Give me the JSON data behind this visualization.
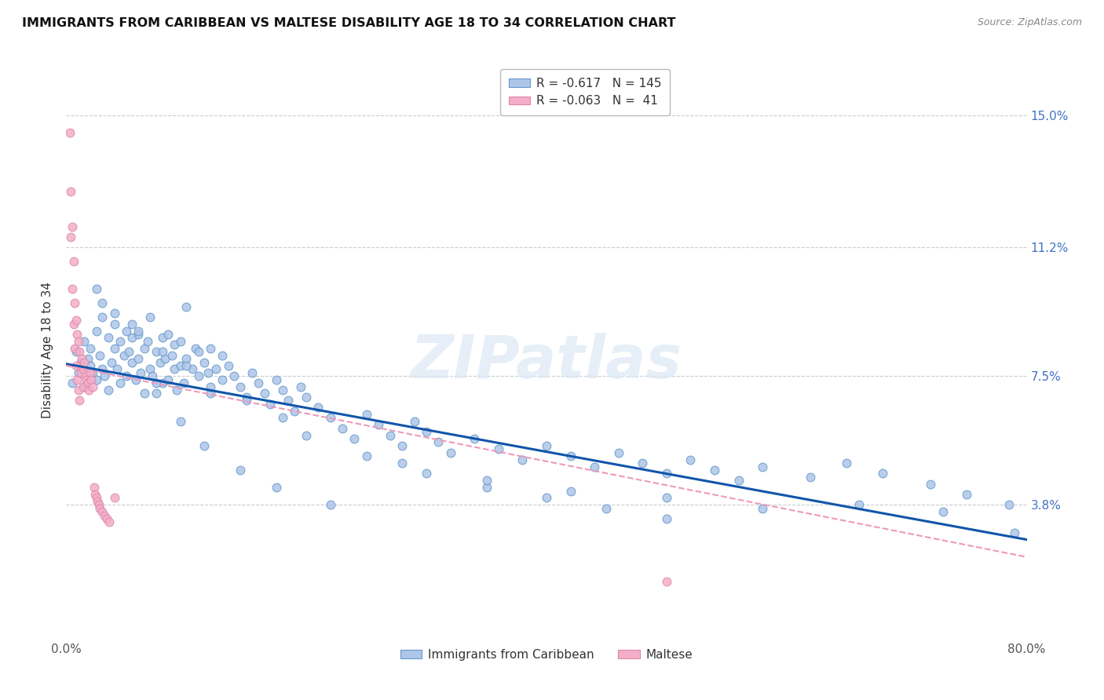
{
  "title": "IMMIGRANTS FROM CARIBBEAN VS MALTESE DISABILITY AGE 18 TO 34 CORRELATION CHART",
  "source": "Source: ZipAtlas.com",
  "ylabel": "Disability Age 18 to 34",
  "ytick_labels": [
    "15.0%",
    "11.2%",
    "7.5%",
    "3.8%"
  ],
  "ytick_values": [
    0.15,
    0.112,
    0.075,
    0.038
  ],
  "xlim": [
    0.0,
    0.8
  ],
  "ylim": [
    0.0,
    0.165
  ],
  "watermark": "ZIPatlas",
  "legend_blue_r": "-0.617",
  "legend_blue_n": "145",
  "legend_pink_r": "-0.063",
  "legend_pink_n": " 41",
  "legend_label_blue": "Immigrants from Caribbean",
  "legend_label_pink": "Maltese",
  "blue_color": "#aec6e8",
  "pink_color": "#f4aec8",
  "blue_edge_color": "#6699cc",
  "pink_edge_color": "#dd88aa",
  "blue_line_color": "#1155aa",
  "pink_line_color": "#ee99bb",
  "blue_scatter_x": [
    0.005,
    0.008,
    0.01,
    0.012,
    0.015,
    0.015,
    0.018,
    0.02,
    0.02,
    0.022,
    0.025,
    0.025,
    0.028,
    0.03,
    0.03,
    0.032,
    0.035,
    0.035,
    0.038,
    0.04,
    0.04,
    0.042,
    0.045,
    0.045,
    0.048,
    0.05,
    0.05,
    0.052,
    0.055,
    0.055,
    0.058,
    0.06,
    0.06,
    0.062,
    0.065,
    0.065,
    0.068,
    0.07,
    0.07,
    0.072,
    0.075,
    0.075,
    0.078,
    0.08,
    0.08,
    0.082,
    0.085,
    0.085,
    0.088,
    0.09,
    0.09,
    0.092,
    0.095,
    0.095,
    0.098,
    0.1,
    0.1,
    0.105,
    0.108,
    0.11,
    0.11,
    0.115,
    0.118,
    0.12,
    0.12,
    0.125,
    0.13,
    0.13,
    0.135,
    0.14,
    0.145,
    0.15,
    0.155,
    0.16,
    0.165,
    0.17,
    0.175,
    0.18,
    0.185,
    0.19,
    0.195,
    0.2,
    0.21,
    0.22,
    0.23,
    0.24,
    0.25,
    0.26,
    0.27,
    0.28,
    0.29,
    0.3,
    0.31,
    0.32,
    0.34,
    0.36,
    0.38,
    0.4,
    0.42,
    0.44,
    0.46,
    0.48,
    0.5,
    0.52,
    0.54,
    0.56,
    0.58,
    0.62,
    0.65,
    0.68,
    0.72,
    0.75,
    0.785,
    0.025,
    0.04,
    0.06,
    0.08,
    0.1,
    0.12,
    0.15,
    0.18,
    0.2,
    0.25,
    0.3,
    0.35,
    0.4,
    0.45,
    0.5,
    0.03,
    0.055,
    0.075,
    0.095,
    0.115,
    0.145,
    0.175,
    0.22,
    0.28,
    0.35,
    0.42,
    0.5,
    0.58,
    0.66,
    0.73,
    0.79
  ],
  "blue_scatter_y": [
    0.073,
    0.082,
    0.076,
    0.079,
    0.085,
    0.072,
    0.08,
    0.078,
    0.083,
    0.076,
    0.088,
    0.074,
    0.081,
    0.077,
    0.092,
    0.075,
    0.086,
    0.071,
    0.079,
    0.083,
    0.09,
    0.077,
    0.085,
    0.073,
    0.081,
    0.088,
    0.075,
    0.082,
    0.079,
    0.086,
    0.074,
    0.08,
    0.087,
    0.076,
    0.083,
    0.07,
    0.085,
    0.077,
    0.092,
    0.075,
    0.082,
    0.07,
    0.079,
    0.086,
    0.073,
    0.08,
    0.087,
    0.074,
    0.081,
    0.077,
    0.084,
    0.071,
    0.078,
    0.085,
    0.073,
    0.08,
    0.095,
    0.077,
    0.083,
    0.075,
    0.082,
    0.079,
    0.076,
    0.083,
    0.07,
    0.077,
    0.074,
    0.081,
    0.078,
    0.075,
    0.072,
    0.069,
    0.076,
    0.073,
    0.07,
    0.067,
    0.074,
    0.071,
    0.068,
    0.065,
    0.072,
    0.069,
    0.066,
    0.063,
    0.06,
    0.057,
    0.064,
    0.061,
    0.058,
    0.055,
    0.062,
    0.059,
    0.056,
    0.053,
    0.057,
    0.054,
    0.051,
    0.055,
    0.052,
    0.049,
    0.053,
    0.05,
    0.047,
    0.051,
    0.048,
    0.045,
    0.049,
    0.046,
    0.05,
    0.047,
    0.044,
    0.041,
    0.038,
    0.1,
    0.093,
    0.088,
    0.082,
    0.078,
    0.072,
    0.068,
    0.063,
    0.058,
    0.052,
    0.047,
    0.043,
    0.04,
    0.037,
    0.034,
    0.096,
    0.09,
    0.073,
    0.062,
    0.055,
    0.048,
    0.043,
    0.038,
    0.05,
    0.045,
    0.042,
    0.04,
    0.037,
    0.038,
    0.036,
    0.03
  ],
  "pink_scatter_x": [
    0.003,
    0.004,
    0.004,
    0.005,
    0.005,
    0.006,
    0.006,
    0.007,
    0.007,
    0.008,
    0.008,
    0.009,
    0.009,
    0.01,
    0.01,
    0.011,
    0.011,
    0.012,
    0.013,
    0.014,
    0.014,
    0.015,
    0.016,
    0.017,
    0.018,
    0.019,
    0.02,
    0.021,
    0.022,
    0.023,
    0.024,
    0.025,
    0.026,
    0.027,
    0.028,
    0.03,
    0.032,
    0.034,
    0.036,
    0.04,
    0.5
  ],
  "pink_scatter_y": [
    0.145,
    0.128,
    0.115,
    0.118,
    0.1,
    0.108,
    0.09,
    0.096,
    0.083,
    0.091,
    0.078,
    0.087,
    0.074,
    0.085,
    0.071,
    0.082,
    0.068,
    0.076,
    0.08,
    0.077,
    0.072,
    0.079,
    0.075,
    0.074,
    0.073,
    0.071,
    0.076,
    0.074,
    0.072,
    0.043,
    0.041,
    0.04,
    0.039,
    0.038,
    0.037,
    0.036,
    0.035,
    0.034,
    0.033,
    0.04,
    0.016
  ],
  "blue_trendline_x": [
    0.0,
    0.8
  ],
  "blue_trendline_y": [
    0.0785,
    0.028
  ],
  "pink_trendline_x": [
    0.0,
    0.8
  ],
  "pink_trendline_y": [
    0.078,
    0.023
  ]
}
